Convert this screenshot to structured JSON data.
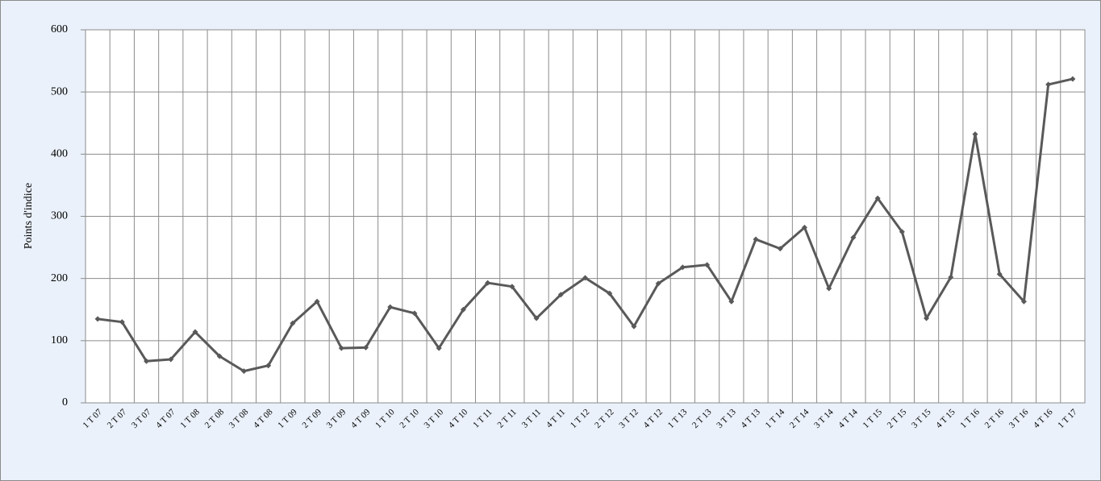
{
  "chart_data": {
    "type": "line",
    "y_label": "Points d'indice",
    "categories": [
      "1 T 07",
      "2 T 07",
      "3 T 07",
      "4 T 07",
      "1 T 08",
      "2 T 08",
      "3 T 08",
      "4 T 08",
      "1 T 09",
      "2 T 09",
      "3 T 09",
      "4 T 09",
      "1 T 10",
      "2 T 10",
      "3 T 10",
      "4 T 10",
      "1 T 11",
      "2 T 11",
      "3 T 11",
      "4 T 11",
      "1 T 12",
      "2 T 12",
      "3 T 12",
      "4 T 12",
      "1 T 13",
      "2 T 13",
      "3 T 13",
      "4 T 13",
      "1 T 14",
      "2 T 14",
      "3 T 14",
      "4 T 14",
      "1 T 15",
      "2 T 15",
      "3 T 15",
      "4 T 15",
      "1 T 16",
      "2 T 16",
      "3 T 16",
      "4 T 16",
      "1 T 17"
    ],
    "values": [
      135,
      130,
      67,
      70,
      114,
      75,
      51,
      60,
      128,
      163,
      88,
      89,
      154,
      144,
      88,
      150,
      193,
      187,
      136,
      174,
      201,
      176,
      123,
      192,
      218,
      222,
      163,
      263,
      248,
      282,
      184,
      266,
      329,
      275,
      136,
      202,
      432,
      207,
      163,
      512,
      521
    ],
    "color": "#595959",
    "ylim": [
      0,
      600
    ],
    "yticks": [
      0,
      100,
      200,
      300,
      400,
      500,
      600
    ],
    "grid": true
  }
}
